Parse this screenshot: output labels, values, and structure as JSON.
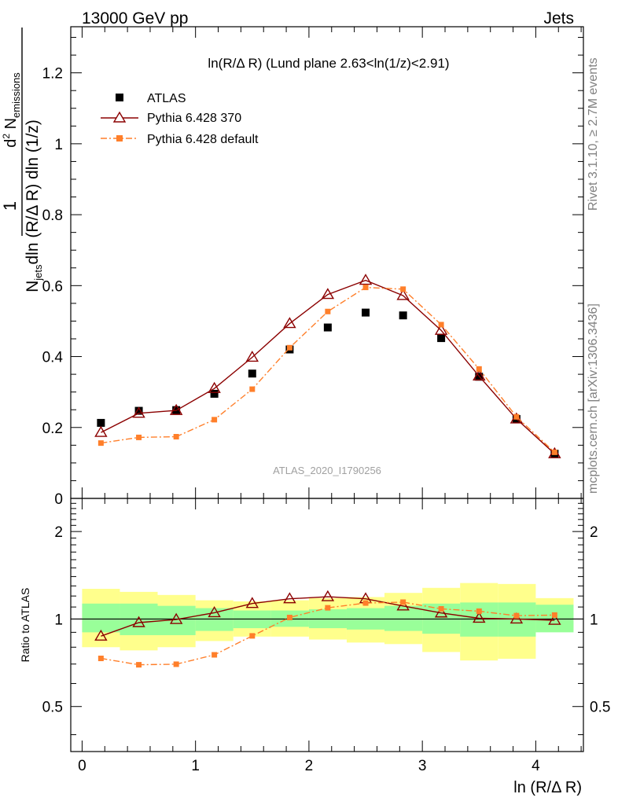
{
  "header": {
    "left": "13000 GeV pp",
    "right": "Jets"
  },
  "side_labels": {
    "rivet": "Rivet 3.1.10, ≥ 2.7M events",
    "mcplots": "mcplots.cern.ch [arXiv:1306.3436]"
  },
  "watermark": "ATLAS_2020_I1790256",
  "chart_data": [
    {
      "type": "scatter",
      "panel": "main",
      "title": "ln(R/Δ R) (Lund plane 2.63<ln(1/z)<2.91)",
      "xlabel": "ln (R/Δ R)",
      "ylabel": "1/N_jets d²N_emissions / dln(R/Δ R) dln(1/z)",
      "xlim": [
        -0.1,
        4.42
      ],
      "ylim": [
        0,
        1.33
      ],
      "yticks": [
        0,
        0.2,
        0.4,
        0.6,
        0.8,
        1,
        1.2
      ],
      "yticklabels": [
        "0",
        "0.2",
        "0.4",
        "0.6",
        "0.8",
        "1",
        "1.2"
      ],
      "legend_position": "top-left",
      "x": [
        0.166,
        0.5,
        0.83,
        1.166,
        1.5,
        1.83,
        2.166,
        2.5,
        2.83,
        3.166,
        3.5,
        3.83,
        4.166
      ],
      "series": [
        {
          "name": "ATLAS",
          "marker": "square",
          "color": "#000000",
          "values": [
            0.213,
            0.247,
            0.249,
            0.295,
            0.352,
            0.42,
            0.482,
            0.524,
            0.516,
            0.452,
            0.343,
            0.224,
            0.126
          ]
        },
        {
          "name": "Pythia 6.428 370",
          "marker": "open-triangle",
          "line": "solid",
          "color": "#8b0000",
          "values": [
            0.186,
            0.24,
            0.248,
            0.31,
            0.398,
            0.493,
            0.575,
            0.615,
            0.572,
            0.474,
            0.345,
            0.224,
            0.126
          ]
        },
        {
          "name": "Pythia 6.428 default",
          "marker": "square",
          "line": "dashdot",
          "color": "#ff7f2a",
          "values": [
            0.156,
            0.172,
            0.174,
            0.222,
            0.308,
            0.425,
            0.527,
            0.595,
            0.59,
            0.49,
            0.365,
            0.23,
            0.13
          ]
        }
      ]
    },
    {
      "type": "line",
      "panel": "ratio",
      "ylabel": "Ratio to ATLAS",
      "xlabel": "ln (R/Δ R)",
      "xlim": [
        -0.1,
        4.42
      ],
      "ylim": [
        0.35,
        2.6
      ],
      "yscale": "log",
      "xticks": [
        0,
        1,
        2,
        3,
        4
      ],
      "xticklabels": [
        "0",
        "1",
        "2",
        "3",
        "4"
      ],
      "yticks": [
        0.5,
        1,
        2
      ],
      "yticklabels": [
        "0.5",
        "1",
        "2"
      ],
      "x_edges": [
        0,
        0.333,
        0.666,
        1.0,
        1.333,
        1.666,
        2.0,
        2.333,
        2.666,
        3.0,
        3.333,
        3.666,
        4.0,
        4.333
      ],
      "band_green": [
        [
          0.9,
          1.13
        ],
        [
          0.88,
          1.13
        ],
        [
          0.88,
          1.11
        ],
        [
          0.91,
          1.09
        ],
        [
          0.93,
          1.07
        ],
        [
          0.94,
          1.07
        ],
        [
          0.93,
          1.08
        ],
        [
          0.92,
          1.09
        ],
        [
          0.91,
          1.11
        ],
        [
          0.89,
          1.13
        ],
        [
          0.87,
          1.14
        ],
        [
          0.87,
          1.14
        ],
        [
          0.9,
          1.12
        ]
      ],
      "band_yellow": [
        [
          0.8,
          1.27
        ],
        [
          0.78,
          1.24
        ],
        [
          0.8,
          1.21
        ],
        [
          0.84,
          1.16
        ],
        [
          0.87,
          1.15
        ],
        [
          0.87,
          1.16
        ],
        [
          0.85,
          1.18
        ],
        [
          0.83,
          1.19
        ],
        [
          0.82,
          1.23
        ],
        [
          0.77,
          1.28
        ],
        [
          0.72,
          1.33
        ],
        [
          0.73,
          1.32
        ],
        [
          0.93,
          1.18
        ]
      ],
      "x": [
        0.166,
        0.5,
        0.83,
        1.166,
        1.5,
        1.83,
        2.166,
        2.5,
        2.83,
        3.166,
        3.5,
        3.83,
        4.166
      ],
      "series": [
        {
          "name": "Pythia 6.428 370",
          "marker": "open-triangle",
          "line": "solid",
          "color": "#8b0000",
          "values": [
            0.873,
            0.972,
            0.996,
            1.051,
            1.131,
            1.174,
            1.193,
            1.174,
            1.109,
            1.049,
            1.006,
            1.0,
            0.99
          ]
        },
        {
          "name": "Pythia 6.428 default",
          "marker": "square",
          "line": "dashdot",
          "color": "#ff7f2a",
          "values": [
            0.732,
            0.696,
            0.699,
            0.753,
            0.875,
            1.012,
            1.093,
            1.135,
            1.143,
            1.084,
            1.064,
            1.027,
            1.032
          ]
        }
      ]
    }
  ]
}
